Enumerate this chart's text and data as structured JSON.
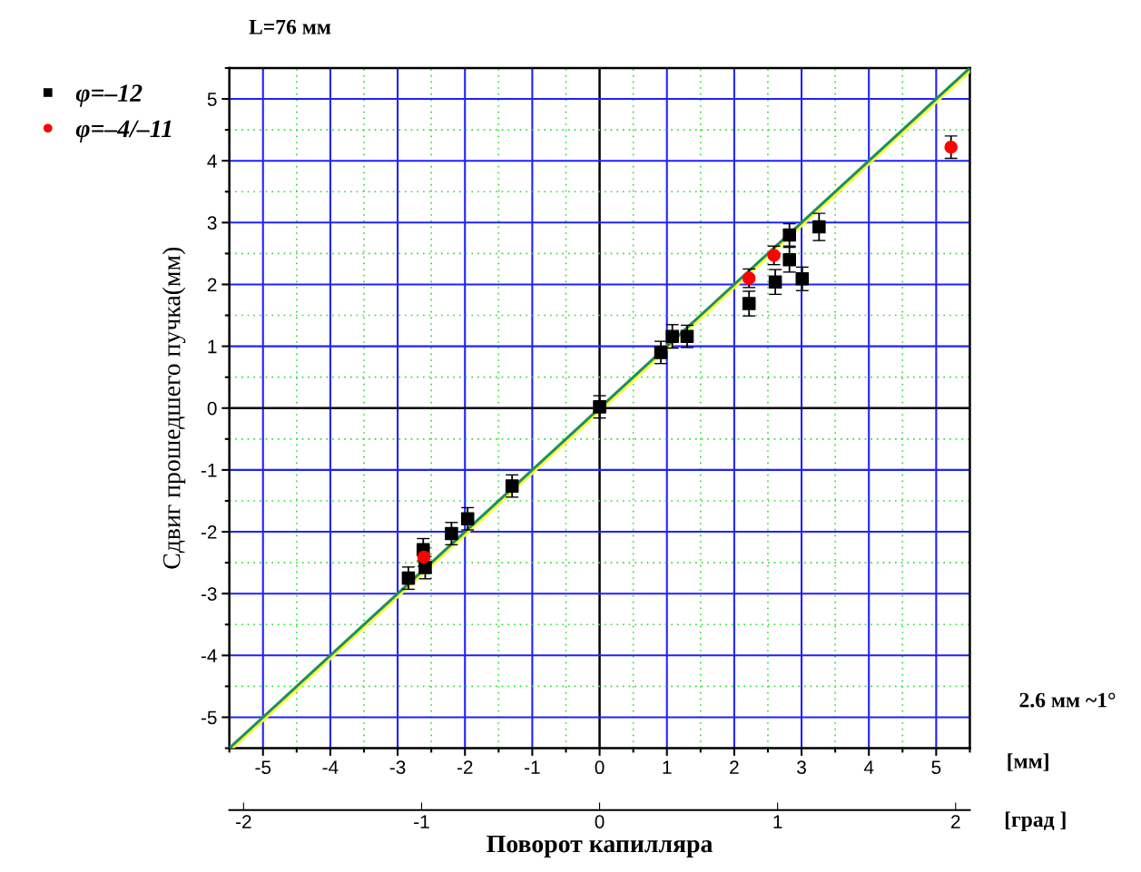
{
  "chart_data": {
    "type": "scatter",
    "title": "L=76 мм",
    "xlabel": "Поворот капилляра",
    "ylabel": "Сдвиг прошедшего пучка(мм)",
    "xlim": [
      -5.5,
      5.5
    ],
    "ylim": [
      -5.5,
      5.5
    ],
    "xticks": [
      {
        "value": -5.5,
        "label": null
      },
      -5,
      {
        "value": -4.5,
        "label": null
      },
      -4,
      {
        "value": -3.5,
        "label": null
      },
      -3,
      {
        "value": -2.5,
        "label": null
      },
      -2,
      {
        "value": -1.5,
        "label": null
      },
      -1,
      {
        "value": -0.5,
        "label": null
      },
      0,
      {
        "value": 0.5,
        "label": null
      },
      1,
      {
        "value": 1.5,
        "label": null
      },
      2,
      {
        "value": 2.5,
        "label": null
      },
      3,
      {
        "value": 3.5,
        "label": null
      },
      4,
      {
        "value": 4.5,
        "label": null
      },
      5,
      {
        "value": 5.5,
        "label": null
      }
    ],
    "yticks": [
      {
        "value": -5.5,
        "label": null
      },
      -5,
      {
        "value": -4.5,
        "label": null
      },
      -4,
      {
        "value": -3.5,
        "label": null
      },
      -3,
      {
        "value": -2.5,
        "label": null
      },
      -2,
      {
        "value": -1.5,
        "label": null
      },
      -1,
      {
        "value": -0.5,
        "label": null
      },
      0,
      {
        "value": 0.5,
        "label": null
      },
      1,
      {
        "value": 1.5,
        "label": null
      },
      2,
      {
        "value": 2.5,
        "label": null
      },
      3,
      {
        "value": 3.5,
        "label": null
      },
      4,
      {
        "value": 4.5,
        "label": null
      },
      5,
      {
        "value": 5.5,
        "label": null
      }
    ],
    "x2lim": [
      -2.08,
      2.08
    ],
    "x2ticks": [
      -2,
      -1,
      0,
      1,
      2
    ],
    "grid": true,
    "legend": "top left",
    "annotations": [
      "[мм]",
      "[град ]",
      "2.6 мм ~1°"
    ],
    "series": [
      {
        "type": "line",
        "color": "#ffff33",
        "x": [
          -5.45,
          5.5
        ],
        "values": [
          -5.5,
          5.45
        ]
      },
      {
        "type": "line",
        "color": "#1f8f5f",
        "x": [
          -5.5,
          5.5
        ],
        "values": [
          -5.5,
          5.5
        ]
      },
      {
        "name": "φ=–12",
        "color": "#000000",
        "marker": "square",
        "x": [
          3.26,
          2.82,
          2.82,
          2.61,
          3.01,
          2.22,
          0.91,
          1.08,
          1.3,
          0.0,
          -1.3,
          -1.96,
          -2.2,
          -2.62,
          -2.59,
          -2.84
        ],
        "values": [
          2.93,
          2.8,
          2.4,
          2.04,
          2.09,
          1.69,
          0.9,
          1.16,
          1.16,
          0.02,
          -1.26,
          -1.79,
          -2.03,
          -2.29,
          -2.58,
          -2.75
        ],
        "errors": [
          0.22,
          0.18,
          0.2,
          0.2,
          0.19,
          0.2,
          0.18,
          0.19,
          0.18,
          0.18,
          0.18,
          0.18,
          0.18,
          0.18,
          0.18,
          0.18
        ]
      },
      {
        "name": "φ=–4/–11",
        "color": "#ff0000",
        "marker": "circle",
        "x": [
          2.59,
          2.22,
          -2.61,
          5.22
        ],
        "values": [
          2.47,
          2.1,
          -2.41,
          4.22
        ],
        "errors": [
          0.15,
          0.15,
          0.15,
          0.18
        ]
      }
    ]
  }
}
